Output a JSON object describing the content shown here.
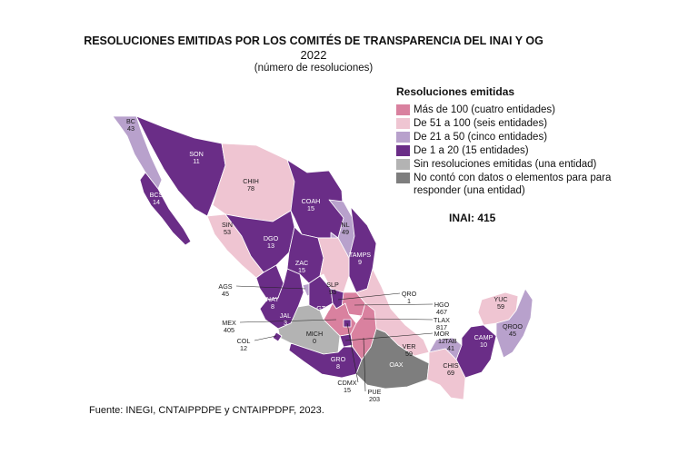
{
  "title": "RESOLUCIONES EMITIDAS POR LOS COMITÉS DE TRANSPARENCIA DEL INAI Y OG",
  "subtitle": "2022",
  "unit_note": "(número de resoluciones)",
  "legend": {
    "title": "Resoluciones emitidas",
    "items": [
      {
        "label": "Más de 100 (cuatro entidades)",
        "color": "#d9819f"
      },
      {
        "label": "De 51 a 100 (seis entidades)",
        "color": "#efc5d2"
      },
      {
        "label": "De 21 a 50 (cinco entidades)",
        "color": "#b8a1cc"
      },
      {
        "label": "De 1 a 20 (15 entidades)",
        "color": "#6a2d87"
      },
      {
        "label": "Sin resoluciones emitidas (una entidad)",
        "color": "#b3b3b3"
      },
      {
        "label": "No contó con datos o elementos para para responder (una entidad)",
        "color": "#7e7e7e"
      }
    ]
  },
  "inai_total": "INAI: 415",
  "source": "Fuente: INEGI, CNTAIPPDPE y CNTAIPPDPF, 2023.",
  "states": [
    {
      "code": "BC",
      "value": "43",
      "category": 2
    },
    {
      "code": "SON",
      "value": "11",
      "category": 3
    },
    {
      "code": "CHIH",
      "value": "78",
      "category": 1
    },
    {
      "code": "BCS",
      "value": "14",
      "category": 3
    },
    {
      "code": "COAH",
      "value": "15",
      "category": 3
    },
    {
      "code": "NL",
      "value": "49",
      "category": 2
    },
    {
      "code": "SIN",
      "value": "53",
      "category": 1
    },
    {
      "code": "DGO",
      "value": "13",
      "category": 3
    },
    {
      "code": "TAMPS",
      "value": "9",
      "category": 3
    },
    {
      "code": "ZAC",
      "value": "15",
      "category": 3
    },
    {
      "code": "AGS",
      "value": "45",
      "category": 2
    },
    {
      "code": "SLP",
      "value": "93",
      "category": 1
    },
    {
      "code": "NAY",
      "value": "8",
      "category": 3
    },
    {
      "code": "GTO",
      "value": "7",
      "category": 3
    },
    {
      "code": "QRO",
      "value": "1",
      "category": 3
    },
    {
      "code": "HGO",
      "value": "467",
      "category": 0
    },
    {
      "code": "JAL",
      "value": "3",
      "category": 3
    },
    {
      "code": "MEX",
      "value": "405",
      "category": 0
    },
    {
      "code": "TLAX",
      "value": "817",
      "category": 0
    },
    {
      "code": "MICH",
      "value": "0",
      "category": 4
    },
    {
      "code": "MOR",
      "value": "12",
      "category": 3
    },
    {
      "code": "COL",
      "value": "12",
      "category": 3
    },
    {
      "code": "YUC",
      "value": "59",
      "category": 1
    },
    {
      "code": "QROO",
      "value": "45",
      "category": 2
    },
    {
      "code": "CAMP",
      "value": "10",
      "category": 3
    },
    {
      "code": "TAB",
      "value": "41",
      "category": 2
    },
    {
      "code": "VER",
      "value": "59",
      "category": 1
    },
    {
      "code": "GRO",
      "value": "8",
      "category": 3
    },
    {
      "code": "OAX",
      "value": "",
      "category": 5
    },
    {
      "code": "CHIS",
      "value": "69",
      "category": 1
    },
    {
      "code": "CDMX",
      "value": "15",
      "category": 3
    },
    {
      "code": "PUE",
      "value": "203",
      "category": 0
    }
  ]
}
